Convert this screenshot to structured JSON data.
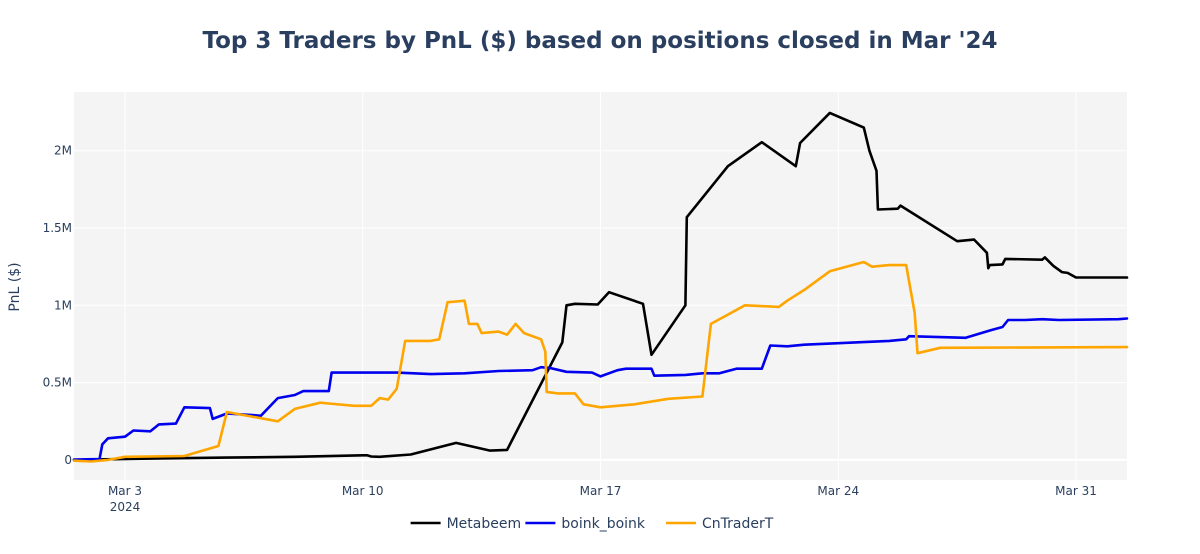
{
  "chart_data": {
    "type": "line",
    "title": "Top 3 Traders by PnL ($) based on positions closed in Mar '24",
    "xlabel": "",
    "ylabel": "PnL ($)",
    "y_ticks": [
      {
        "value": 0,
        "label": "0"
      },
      {
        "value": 500000,
        "label": "0.5M"
      },
      {
        "value": 1000000,
        "label": "1M"
      },
      {
        "value": 1500000,
        "label": "1.5M"
      },
      {
        "value": 2000000,
        "label": "2M"
      }
    ],
    "x_ticks": [
      {
        "value": "2024-03-03",
        "label": "Mar 3",
        "sublabel": "2024"
      },
      {
        "value": "2024-03-10",
        "label": "Mar 10",
        "sublabel": ""
      },
      {
        "value": "2024-03-17",
        "label": "Mar 17",
        "sublabel": ""
      },
      {
        "value": "2024-03-24",
        "label": "Mar 24",
        "sublabel": ""
      },
      {
        "value": "2024-03-31",
        "label": "Mar 31",
        "sublabel": ""
      }
    ],
    "xlim": [
      "2024-03-01T12:00",
      "2024-04-01T12:00"
    ],
    "ylim": [
      -130000,
      2380000
    ],
    "grid": true,
    "legend_position": "bottom",
    "colors": {
      "plot_bg": "#f4f4f4",
      "grid": "#ffffff",
      "zero_line": "#ffffff",
      "text": "#2a3f5f"
    },
    "series": [
      {
        "name": "Metabeem",
        "color": "#000000",
        "points": [
          [
            "2024-03-01T12:00",
            0
          ],
          [
            "2024-03-02T00:00",
            2000
          ],
          [
            "2024-03-04T00:00",
            10000
          ],
          [
            "2024-03-06T00:00",
            15000
          ],
          [
            "2024-03-08T00:00",
            20000
          ],
          [
            "2024-03-10T00:00",
            30000
          ],
          [
            "2024-03-10T03:00",
            30000
          ],
          [
            "2024-03-10T06:00",
            22000
          ],
          [
            "2024-03-10T12:00",
            20000
          ],
          [
            "2024-03-11T10:00",
            35000
          ],
          [
            "2024-03-12T18:00",
            110000
          ],
          [
            "2024-03-13T18:00",
            60000
          ],
          [
            "2024-03-14T06:00",
            65000
          ],
          [
            "2024-03-15T21:00",
            760000
          ],
          [
            "2024-03-16T00:00",
            1000000
          ],
          [
            "2024-03-16T06:00",
            1010000
          ],
          [
            "2024-03-16T22:00",
            1005000
          ],
          [
            "2024-03-17T06:00",
            1085000
          ],
          [
            "2024-03-18T06:00",
            1010000
          ],
          [
            "2024-03-18T12:00",
            680000
          ],
          [
            "2024-03-19T12:00",
            1000000
          ],
          [
            "2024-03-19T13:00",
            1570000
          ],
          [
            "2024-03-20T18:00",
            1900000
          ],
          [
            "2024-03-21T18:00",
            2055000
          ],
          [
            "2024-03-22T18:00",
            1900000
          ],
          [
            "2024-03-22T21:00",
            2050000
          ],
          [
            "2024-03-23T18:00",
            2245000
          ],
          [
            "2024-03-24T18:00",
            2150000
          ],
          [
            "2024-03-24T22:00",
            2000000
          ],
          [
            "2024-03-25T03:00",
            1870000
          ],
          [
            "2024-03-25T04:00",
            1620000
          ],
          [
            "2024-03-25T18:00",
            1625000
          ],
          [
            "2024-03-25T20:00",
            1645000
          ],
          [
            "2024-03-27T12:00",
            1415000
          ],
          [
            "2024-03-28T00:00",
            1425000
          ],
          [
            "2024-03-28T09:00",
            1340000
          ],
          [
            "2024-03-28T10:00",
            1240000
          ],
          [
            "2024-03-28T11:00",
            1260000
          ],
          [
            "2024-03-28T20:00",
            1265000
          ],
          [
            "2024-03-28T22:00",
            1300000
          ],
          [
            "2024-03-30T00:00",
            1295000
          ],
          [
            "2024-03-30T02:00",
            1310000
          ],
          [
            "2024-03-30T08:00",
            1255000
          ],
          [
            "2024-03-30T14:00",
            1215000
          ],
          [
            "2024-03-30T18:00",
            1210000
          ],
          [
            "2024-03-31T00:00",
            1180000
          ],
          [
            "2024-04-01T12:00",
            1180000
          ]
        ]
      },
      {
        "name": "boink_boink",
        "color": "#0000ee",
        "points": [
          [
            "2024-03-01T12:00",
            2000
          ],
          [
            "2024-03-02T06:00",
            5000
          ],
          [
            "2024-03-02T08:00",
            100000
          ],
          [
            "2024-03-02T12:00",
            140000
          ],
          [
            "2024-03-03T00:00",
            150000
          ],
          [
            "2024-03-03T06:00",
            190000
          ],
          [
            "2024-03-03T18:00",
            185000
          ],
          [
            "2024-03-04T00:00",
            230000
          ],
          [
            "2024-03-04T12:00",
            235000
          ],
          [
            "2024-03-04T18:00",
            340000
          ],
          [
            "2024-03-05T12:00",
            335000
          ],
          [
            "2024-03-05T14:00",
            265000
          ],
          [
            "2024-03-06T00:00",
            300000
          ],
          [
            "2024-03-06T18:00",
            290000
          ],
          [
            "2024-03-07T00:00",
            285000
          ],
          [
            "2024-03-07T12:00",
            400000
          ],
          [
            "2024-03-08T00:00",
            420000
          ],
          [
            "2024-03-08T06:00",
            445000
          ],
          [
            "2024-03-09T00:00",
            445000
          ],
          [
            "2024-03-09T02:00",
            565000
          ],
          [
            "2024-03-11T00:00",
            565000
          ],
          [
            "2024-03-12T00:00",
            555000
          ],
          [
            "2024-03-13T00:00",
            560000
          ],
          [
            "2024-03-14T00:00",
            575000
          ],
          [
            "2024-03-15T00:00",
            580000
          ],
          [
            "2024-03-15T06:00",
            600000
          ],
          [
            "2024-03-15T12:00",
            595000
          ],
          [
            "2024-03-16T00:00",
            570000
          ],
          [
            "2024-03-16T18:00",
            565000
          ],
          [
            "2024-03-17T00:00",
            540000
          ],
          [
            "2024-03-17T12:00",
            580000
          ],
          [
            "2024-03-17T18:00",
            590000
          ],
          [
            "2024-03-18T12:00",
            590000
          ],
          [
            "2024-03-18T14:00",
            545000
          ],
          [
            "2024-03-19T12:00",
            550000
          ],
          [
            "2024-03-20T00:00",
            560000
          ],
          [
            "2024-03-20T12:00",
            560000
          ],
          [
            "2024-03-21T00:00",
            590000
          ],
          [
            "2024-03-21T18:00",
            590000
          ],
          [
            "2024-03-22T00:00",
            740000
          ],
          [
            "2024-03-22T12:00",
            735000
          ],
          [
            "2024-03-23T00:00",
            745000
          ],
          [
            "2024-03-24T00:00",
            755000
          ],
          [
            "2024-03-25T12:00",
            770000
          ],
          [
            "2024-03-26T00:00",
            780000
          ],
          [
            "2024-03-26T02:00",
            800000
          ],
          [
            "2024-03-27T18:00",
            790000
          ],
          [
            "2024-03-28T12:00",
            840000
          ],
          [
            "2024-03-28T20:00",
            860000
          ],
          [
            "2024-03-29T00:00",
            905000
          ],
          [
            "2024-03-29T12:00",
            905000
          ],
          [
            "2024-03-30T00:00",
            910000
          ],
          [
            "2024-03-30T12:00",
            905000
          ],
          [
            "2024-04-01T06:00",
            910000
          ],
          [
            "2024-04-01T12:00",
            915000
          ]
        ]
      },
      {
        "name": "CnTraderT",
        "color": "#ffa500",
        "points": [
          [
            "2024-03-01T12:00",
            -5000
          ],
          [
            "2024-03-02T00:00",
            -10000
          ],
          [
            "2024-03-02T12:00",
            0
          ],
          [
            "2024-03-03T00:00",
            20000
          ],
          [
            "2024-03-04T18:00",
            25000
          ],
          [
            "2024-03-05T18:00",
            90000
          ],
          [
            "2024-03-06T00:00",
            310000
          ],
          [
            "2024-03-07T12:00",
            250000
          ],
          [
            "2024-03-08T00:00",
            330000
          ],
          [
            "2024-03-08T18:00",
            370000
          ],
          [
            "2024-03-09T00:00",
            365000
          ],
          [
            "2024-03-09T18:00",
            350000
          ],
          [
            "2024-03-10T06:00",
            350000
          ],
          [
            "2024-03-10T12:00",
            400000
          ],
          [
            "2024-03-10T18:00",
            390000
          ],
          [
            "2024-03-11T00:00",
            460000
          ],
          [
            "2024-03-11T06:00",
            770000
          ],
          [
            "2024-03-12T00:00",
            770000
          ],
          [
            "2024-03-12T06:00",
            780000
          ],
          [
            "2024-03-12T12:00",
            1020000
          ],
          [
            "2024-03-12T18:00",
            1025000
          ],
          [
            "2024-03-13T00:00",
            1030000
          ],
          [
            "2024-03-13T03:00",
            880000
          ],
          [
            "2024-03-13T09:00",
            880000
          ],
          [
            "2024-03-13T12:00",
            820000
          ],
          [
            "2024-03-14T00:00",
            830000
          ],
          [
            "2024-03-14T06:00",
            810000
          ],
          [
            "2024-03-14T12:00",
            880000
          ],
          [
            "2024-03-14T18:00",
            820000
          ],
          [
            "2024-03-15T06:00",
            780000
          ],
          [
            "2024-03-15T09:00",
            700000
          ],
          [
            "2024-03-15T10:00",
            440000
          ],
          [
            "2024-03-15T18:00",
            430000
          ],
          [
            "2024-03-16T06:00",
            430000
          ],
          [
            "2024-03-16T12:00",
            360000
          ],
          [
            "2024-03-17T00:00",
            340000
          ],
          [
            "2024-03-18T00:00",
            360000
          ],
          [
            "2024-03-19T00:00",
            395000
          ],
          [
            "2024-03-20T00:00",
            410000
          ],
          [
            "2024-03-20T06:00",
            880000
          ],
          [
            "2024-03-20T18:00",
            940000
          ],
          [
            "2024-03-21T06:00",
            1000000
          ],
          [
            "2024-03-22T06:00",
            990000
          ],
          [
            "2024-03-22T12:00",
            1030000
          ],
          [
            "2024-03-23T00:00",
            1100000
          ],
          [
            "2024-03-23T18:00",
            1220000
          ],
          [
            "2024-03-24T18:00",
            1280000
          ],
          [
            "2024-03-25T00:00",
            1250000
          ],
          [
            "2024-03-25T12:00",
            1260000
          ],
          [
            "2024-03-26T00:00",
            1260000
          ],
          [
            "2024-03-26T06:00",
            950000
          ],
          [
            "2024-03-26T08:00",
            690000
          ],
          [
            "2024-03-27T00:00",
            725000
          ],
          [
            "2024-04-01T12:00",
            730000
          ]
        ]
      }
    ]
  }
}
